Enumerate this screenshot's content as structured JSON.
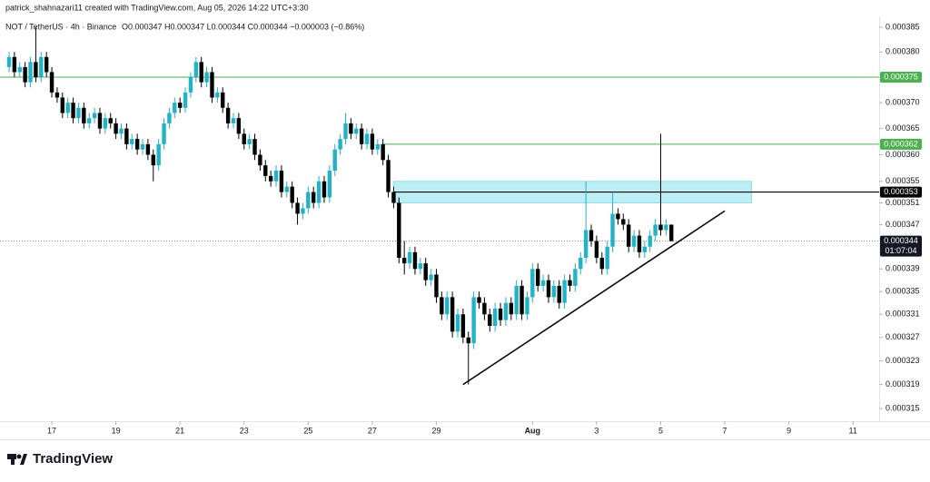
{
  "header": {
    "attribution": "patrick_shahnazari11 created with TradingView.com, Aug 05, 2026 14:22 UTC+3:30",
    "symbol": "NOT / TetherUS · 4h · Binance",
    "quote": "O0.000347 H0.000347 L0.000344 C0.000344 −0.000003 (−0.86%)"
  },
  "logo": "TradingView",
  "chart_data": {
    "type": "candlestick",
    "log_scale": true,
    "up_color": "#22b3c8",
    "down_color": "#000000",
    "open": [
      0.000377,
      0.000379,
      0.000376,
      0.000377,
      0.000374,
      0.000378,
      0.000375,
      0.000379,
      0.000376,
      0.000372,
      0.000371,
      0.000368,
      0.00037,
      0.000367,
      0.000369,
      0.000366,
      0.000367,
      0.000368,
      0.000365,
      0.000367,
      0.000366,
      0.000364,
      0.000365,
      0.000362,
      0.000363,
      0.000361,
      0.000362,
      0.00036,
      0.000358,
      0.000362,
      0.000366,
      0.000368,
      0.00037,
      0.000369,
      0.000372,
      0.000375,
      0.000378,
      0.000374,
      0.000376,
      0.000371,
      0.000372,
      0.000369,
      0.000366,
      0.000367,
      0.000364,
      0.000362,
      0.000363,
      0.00036,
      0.000358,
      0.000356,
      0.000355,
      0.000357,
      0.000353,
      0.000354,
      0.000351,
      0.000349,
      0.00035,
      0.000353,
      0.000351,
      0.000355,
      0.000352,
      0.000357,
      0.000361,
      0.000363,
      0.000366,
      0.000364,
      0.000365,
      0.000362,
      0.000364,
      0.000361,
      0.000362,
      0.000359,
      0.000353,
      0.000351,
      0.000341,
      0.00034,
      0.000342,
      0.000339,
      0.00034,
      0.000337,
      0.000338,
      0.000334,
      0.000331,
      0.000334,
      0.000328,
      0.000331,
      0.000327,
      0.000326,
      0.000334,
      0.000333,
      0.000331,
      0.000329,
      0.000332,
      0.00033,
      0.000333,
      0.000331,
      0.000336,
      0.000331,
      0.000334,
      0.000339,
      0.000336,
      0.000337,
      0.000334,
      0.000336,
      0.000333,
      0.000337,
      0.000336,
      0.000339,
      0.000341,
      0.000346,
      0.000344,
      0.000341,
      0.000339,
      0.000343,
      0.000349,
      0.000348,
      0.000347,
      0.000343,
      0.000345,
      0.000342,
      0.000343,
      0.000345,
      0.000347,
      0.000346,
      0.000347
    ],
    "high": [
      0.00038,
      0.00038,
      0.000378,
      0.000378,
      0.000379,
      0.000385,
      0.00038,
      0.00038,
      0.000377,
      0.000373,
      0.000372,
      0.000371,
      0.000371,
      0.00037,
      0.00037,
      0.000368,
      0.000369,
      0.000369,
      0.000368,
      0.000368,
      0.000367,
      0.000366,
      0.000366,
      0.000364,
      0.000364,
      0.000363,
      0.000363,
      0.000361,
      0.000363,
      0.000367,
      0.000369,
      0.000371,
      0.000371,
      0.000373,
      0.000376,
      0.000379,
      0.000379,
      0.000377,
      0.000377,
      0.000373,
      0.000373,
      0.00037,
      0.000368,
      0.000368,
      0.000365,
      0.000364,
      0.000364,
      0.000361,
      0.000359,
      0.000357,
      0.000358,
      0.000358,
      0.000355,
      0.000355,
      0.000352,
      0.000351,
      0.000354,
      0.000354,
      0.000356,
      0.000356,
      0.000358,
      0.000362,
      0.000364,
      0.000368,
      0.000367,
      0.000366,
      0.000366,
      0.000365,
      0.000365,
      0.000363,
      0.000363,
      0.00036,
      0.000354,
      0.000352,
      0.000344,
      0.000343,
      0.000343,
      0.000341,
      0.000341,
      0.000339,
      0.000339,
      0.000335,
      0.000335,
      0.000335,
      0.000332,
      0.000332,
      0.000328,
      0.000335,
      0.000335,
      0.000334,
      0.000332,
      0.000333,
      0.000333,
      0.000334,
      0.000334,
      0.000337,
      0.000337,
      0.000335,
      0.00034,
      0.00034,
      0.000338,
      0.000338,
      0.000337,
      0.000337,
      0.000338,
      0.000338,
      0.00034,
      0.000342,
      0.000355,
      0.000347,
      0.000345,
      0.000342,
      0.000344,
      0.000353,
      0.00035,
      0.000349,
      0.000348,
      0.000346,
      0.000346,
      0.000344,
      0.000346,
      0.000348,
      0.000364,
      0.000348,
      0.000347
    ],
    "low": [
      0.000376,
      0.000375,
      0.000375,
      0.000373,
      0.000373,
      0.000374,
      0.000374,
      0.000375,
      0.000371,
      0.00037,
      0.000367,
      0.000367,
      0.000366,
      0.000366,
      0.000365,
      0.000365,
      0.000366,
      0.000364,
      0.000364,
      0.000365,
      0.000363,
      0.000363,
      0.000361,
      0.000361,
      0.00036,
      0.00036,
      0.000359,
      0.000355,
      0.000357,
      0.000361,
      0.000365,
      0.000367,
      0.000368,
      0.000368,
      0.000371,
      0.000374,
      0.000373,
      0.000373,
      0.00037,
      0.00037,
      0.000368,
      0.000365,
      0.000365,
      0.000363,
      0.000361,
      0.000361,
      0.000359,
      0.000357,
      0.000355,
      0.000354,
      0.000354,
      0.000352,
      0.000352,
      0.00035,
      0.000347,
      0.000348,
      0.000349,
      0.00035,
      0.00035,
      0.000351,
      0.000351,
      0.000356,
      0.00036,
      0.000362,
      0.000363,
      0.000363,
      0.000361,
      0.000361,
      0.00036,
      0.00036,
      0.000358,
      0.000352,
      0.00035,
      0.00034,
      0.000338,
      0.000339,
      0.000338,
      0.000338,
      0.000336,
      0.000336,
      0.000333,
      0.00033,
      0.00033,
      0.000327,
      0.000327,
      0.000326,
      0.000319,
      0.000325,
      0.000332,
      0.00033,
      0.000328,
      0.000328,
      0.000329,
      0.000329,
      0.00033,
      0.00033,
      0.00033,
      0.00033,
      0.000333,
      0.000335,
      0.000335,
      0.000333,
      0.000333,
      0.000332,
      0.000332,
      0.000335,
      0.000335,
      0.000338,
      0.00034,
      0.000343,
      0.00034,
      0.000338,
      0.000338,
      0.000342,
      0.000347,
      0.000346,
      0.000342,
      0.000342,
      0.000341,
      0.000341,
      0.000342,
      0.000344,
      0.000345,
      0.000345,
      0.000344
    ],
    "close": [
      0.000379,
      0.000376,
      0.000377,
      0.000374,
      0.000378,
      0.000375,
      0.000379,
      0.000376,
      0.000372,
      0.000371,
      0.000368,
      0.00037,
      0.000367,
      0.000369,
      0.000366,
      0.000367,
      0.000368,
      0.000365,
      0.000367,
      0.000366,
      0.000364,
      0.000365,
      0.000362,
      0.000363,
      0.000361,
      0.000362,
      0.00036,
      0.000358,
      0.000362,
      0.000366,
      0.000368,
      0.00037,
      0.000369,
      0.000372,
      0.000375,
      0.000378,
      0.000374,
      0.000376,
      0.000371,
      0.000372,
      0.000369,
      0.000366,
      0.000367,
      0.000364,
      0.000362,
      0.000363,
      0.00036,
      0.000358,
      0.000356,
      0.000355,
      0.000357,
      0.000353,
      0.000354,
      0.000351,
      0.000349,
      0.00035,
      0.000353,
      0.000351,
      0.000355,
      0.000352,
      0.000357,
      0.000361,
      0.000363,
      0.000366,
      0.000364,
      0.000365,
      0.000362,
      0.000364,
      0.000361,
      0.000362,
      0.000359,
      0.000353,
      0.000351,
      0.000341,
      0.00034,
      0.000342,
      0.000339,
      0.00034,
      0.000337,
      0.000338,
      0.000334,
      0.000331,
      0.000334,
      0.000328,
      0.000331,
      0.000327,
      0.000326,
      0.000334,
      0.000333,
      0.000331,
      0.000329,
      0.000332,
      0.00033,
      0.000333,
      0.000331,
      0.000336,
      0.000331,
      0.000334,
      0.000339,
      0.000336,
      0.000337,
      0.000334,
      0.000336,
      0.000333,
      0.000337,
      0.000336,
      0.000339,
      0.000341,
      0.000346,
      0.000344,
      0.000341,
      0.000339,
      0.000343,
      0.000349,
      0.000348,
      0.000347,
      0.000343,
      0.000345,
      0.000342,
      0.000343,
      0.000345,
      0.000347,
      0.000346,
      0.000347,
      0.000344
    ],
    "countdown": "01:07:04",
    "xlim": [
      -1.7,
      162.9
    ],
    "xticks": [
      {
        "value": 8,
        "label": "17"
      },
      {
        "value": 20,
        "label": "19"
      },
      {
        "value": 32,
        "label": "21"
      },
      {
        "value": 44,
        "label": "23"
      },
      {
        "value": 56,
        "label": "25"
      },
      {
        "value": 68,
        "label": "27"
      },
      {
        "value": 80,
        "label": "29"
      },
      {
        "value": 98,
        "label": "Aug"
      },
      {
        "value": 110,
        "label": "3"
      },
      {
        "value": 122,
        "label": "5"
      },
      {
        "value": 134,
        "label": "7"
      },
      {
        "value": 146,
        "label": "9"
      },
      {
        "value": 158,
        "label": "11"
      }
    ],
    "ylim": [
      0.0003129,
      0.0003872
    ],
    "yticks": [
      0.000385,
      {
        "value": 0.00038,
        "label": "0.000380"
      },
      {
        "value": 0.00037,
        "label": "0.000370"
      },
      0.000365,
      {
        "value": 0.00036,
        "label": "0.000360"
      },
      0.000355,
      0.000351,
      0.000347,
      0.000339,
      0.000335,
      0.000331,
      0.000327,
      0.000323,
      0.000319,
      0.000315
    ],
    "levels": [
      {
        "value": 0.000375,
        "color": "#4caf50"
      },
      {
        "value": 0.000362,
        "color": "#4caf50",
        "start": 70
      },
      {
        "value": 0.000353,
        "color": "#000000",
        "start": 72
      }
    ],
    "zone": {
      "x": [
        72,
        139
      ],
      "y": [
        0.000351,
        0.000355
      ],
      "color": "#bdeef5"
    },
    "trend_line": {
      "x": [
        85,
        134
      ],
      "y": [
        0.000319,
        0.0003495
      ],
      "color": "#000000"
    }
  }
}
